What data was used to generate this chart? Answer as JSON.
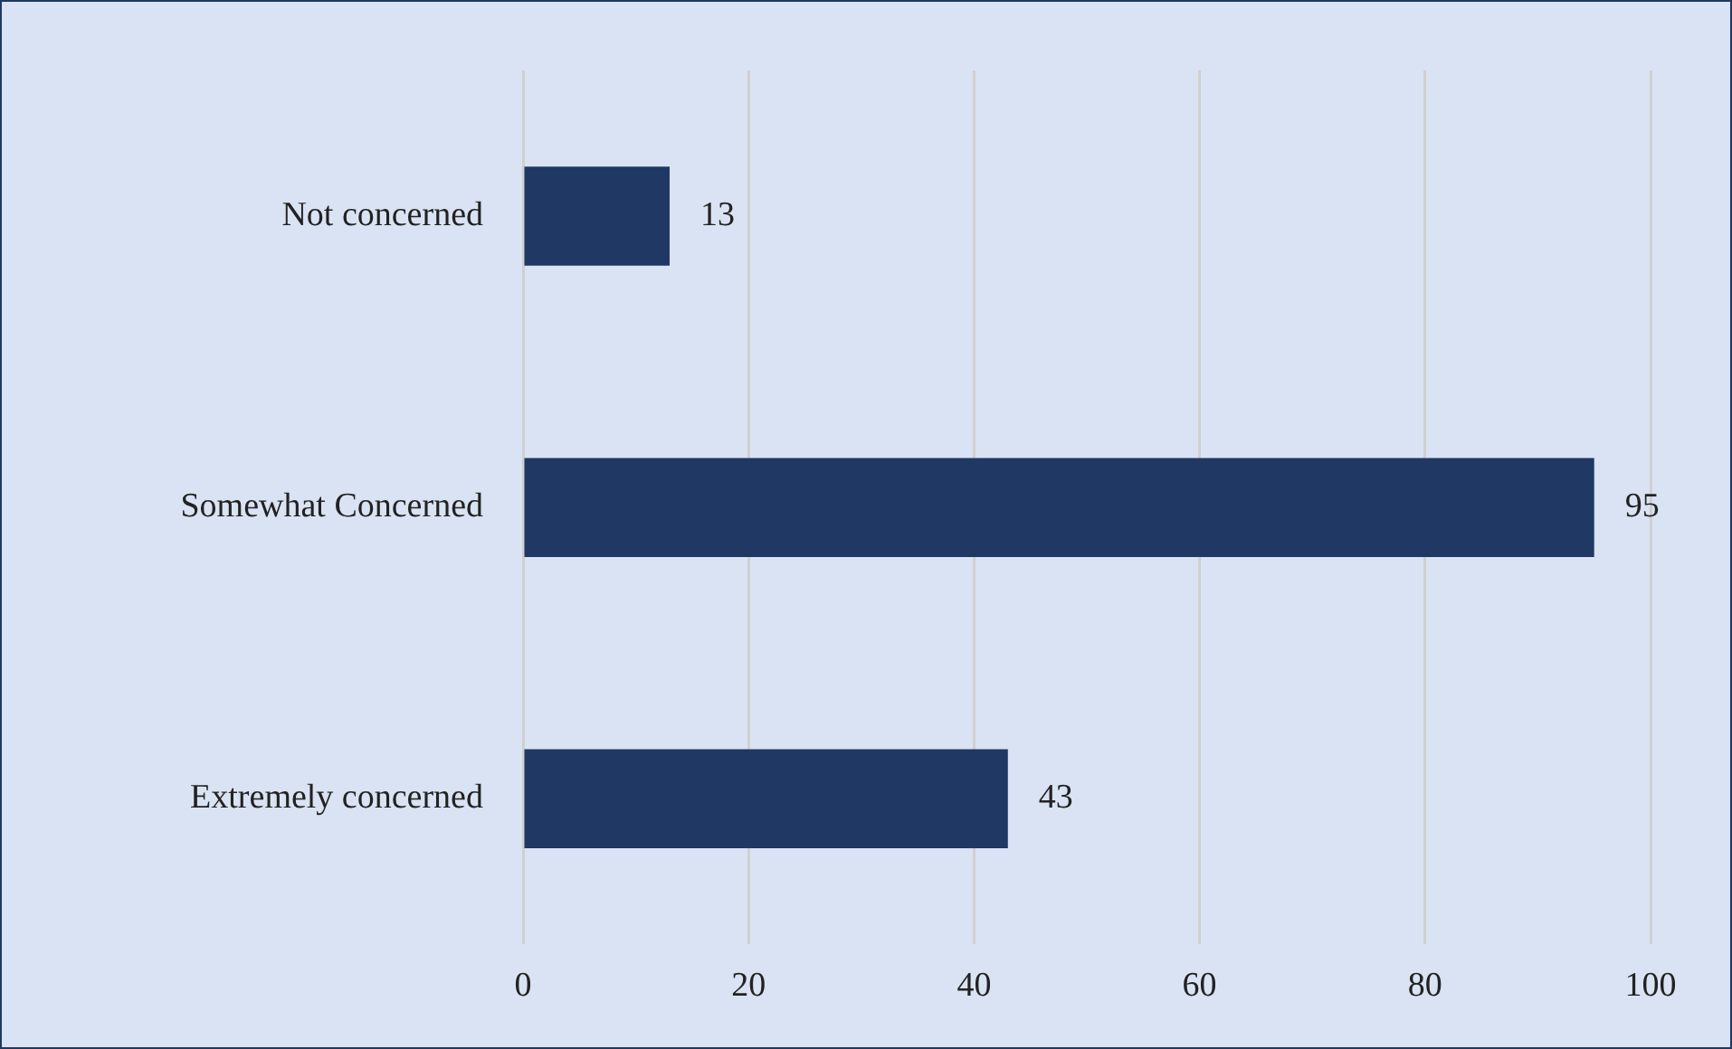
{
  "chart_data": {
    "type": "bar",
    "orientation": "horizontal",
    "categories": [
      "Not concerned",
      "Somewhat Concerned",
      "Extremely concerned"
    ],
    "values": [
      13,
      95,
      43
    ],
    "color": "#1f3864",
    "xlim": [
      0,
      100
    ],
    "xticks": [
      0,
      20,
      40,
      60,
      80,
      100
    ],
    "grid": "x",
    "data_labels": true,
    "legend": false
  }
}
